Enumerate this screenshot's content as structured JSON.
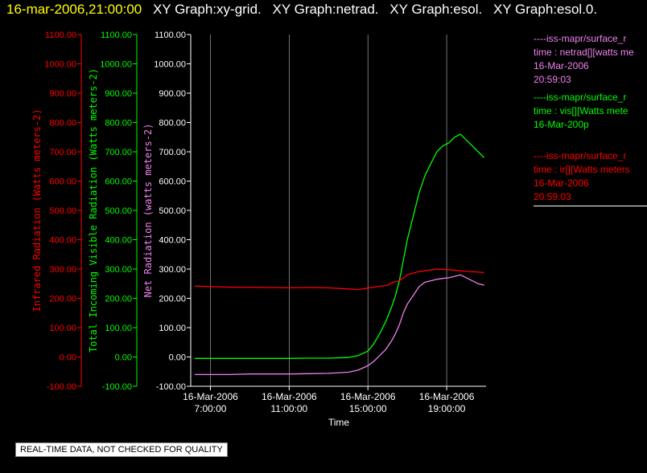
{
  "title": {
    "date": "16-mar-2006,21:00:00",
    "graphs": [
      "XY Graph:xy-grid.",
      "XY Graph:netrad.",
      "XY Graph:esol.",
      "XY Graph:esol.0."
    ]
  },
  "legend": [
    {
      "line": "----iss-mapr/surface_r",
      "desc": "time : netrad[][watts me",
      "date": "16-Mar-2006",
      "time": "20:59:03",
      "color": "#ee82ee"
    },
    {
      "line": "----iss-mapr/surface_r",
      "desc": "time : vis[][Watts mete",
      "date": "16-Mar-200p",
      "time": "",
      "color": "#00ff00"
    },
    {
      "line": "----iss-mapr/surface_r",
      "desc": "time : ir[][Watts meters",
      "date": "16-Mar-2006",
      "time": "20:59:03",
      "color": "#ff0000"
    }
  ],
  "quality_note": "REAL-TIME DATA, NOT CHECKED FOR QUALITY",
  "colors": {
    "ir": "#ff0000",
    "vis": "#00ff00",
    "net": "#ee82ee",
    "axis": "#ffffff",
    "grid": "#ffffff"
  },
  "chart_data": {
    "type": "line",
    "xlabel": "Time",
    "x_range_hours": [
      6.0,
      21.0
    ],
    "x_ticks": [
      {
        "h": 7,
        "date": "16-Mar-2006",
        "time": "7:00:00"
      },
      {
        "h": 11,
        "date": "16-Mar-2006",
        "time": "11:00:00"
      },
      {
        "h": 15,
        "date": "16-Mar-2006",
        "time": "15:00:00"
      },
      {
        "h": 19,
        "date": "16-Mar-2006",
        "time": "19:00:00"
      }
    ],
    "y_ticks": [
      -100,
      0,
      100,
      200,
      300,
      400,
      500,
      600,
      700,
      800,
      900,
      1000,
      1100
    ],
    "y_tick_labels": [
      "-100.00",
      "0.00",
      "100.00",
      "200.00",
      "300.00",
      "400.00",
      "500.00",
      "600.00",
      "700.00",
      "800.00",
      "900.00",
      "1000.00",
      "1100.00"
    ],
    "ylim": [
      -100,
      1100
    ],
    "y_axes": [
      {
        "label": "Infrared Radiation (Watts meters-2)",
        "color": "#ff0000"
      },
      {
        "label": "Total Incoming Visible Radiation (Watts meters-2)",
        "color": "#00ff00"
      },
      {
        "label": "Net Radiation (watts meters-2)",
        "color": "#ee82ee"
      }
    ],
    "grid": true,
    "series": [
      {
        "key": "ir",
        "color": "#ff0000",
        "points": [
          [
            6.2,
            242
          ],
          [
            7,
            240
          ],
          [
            8,
            238
          ],
          [
            9,
            238
          ],
          [
            10,
            237
          ],
          [
            11,
            236
          ],
          [
            12,
            237
          ],
          [
            13,
            236
          ],
          [
            14,
            232
          ],
          [
            14.5,
            230
          ],
          [
            15,
            235
          ],
          [
            15.5,
            240
          ],
          [
            16,
            245
          ],
          [
            16.3,
            255
          ],
          [
            16.6,
            260
          ],
          [
            17,
            280
          ],
          [
            17.5,
            290
          ],
          [
            18,
            295
          ],
          [
            18.5,
            300
          ],
          [
            19,
            298
          ],
          [
            19.5,
            295
          ],
          [
            20,
            292
          ],
          [
            20.5,
            290
          ],
          [
            20.9,
            288
          ]
        ]
      },
      {
        "key": "vis",
        "color": "#00ff00",
        "points": [
          [
            6.2,
            -5
          ],
          [
            7,
            -5
          ],
          [
            8,
            -5
          ],
          [
            9,
            -5
          ],
          [
            10,
            -5
          ],
          [
            11,
            -5
          ],
          [
            12,
            -4
          ],
          [
            13,
            -4
          ],
          [
            14,
            -2
          ],
          [
            14.5,
            5
          ],
          [
            15,
            20
          ],
          [
            15.3,
            45
          ],
          [
            15.6,
            80
          ],
          [
            15.9,
            120
          ],
          [
            16.2,
            170
          ],
          [
            16.4,
            210
          ],
          [
            16.6,
            260
          ],
          [
            16.8,
            330
          ],
          [
            17,
            400
          ],
          [
            17.3,
            480
          ],
          [
            17.6,
            560
          ],
          [
            17.9,
            620
          ],
          [
            18.2,
            660
          ],
          [
            18.5,
            700
          ],
          [
            18.8,
            720
          ],
          [
            19.1,
            730
          ],
          [
            19.4,
            750
          ],
          [
            19.7,
            760
          ],
          [
            20,
            740
          ],
          [
            20.3,
            720
          ],
          [
            20.6,
            700
          ],
          [
            20.9,
            680
          ]
        ]
      },
      {
        "key": "net",
        "color": "#ee82ee",
        "points": [
          [
            6.2,
            -60
          ],
          [
            7,
            -60
          ],
          [
            8,
            -60
          ],
          [
            9,
            -58
          ],
          [
            10,
            -58
          ],
          [
            11,
            -58
          ],
          [
            12,
            -57
          ],
          [
            13,
            -56
          ],
          [
            14,
            -52
          ],
          [
            14.5,
            -45
          ],
          [
            15,
            -30
          ],
          [
            15.3,
            -15
          ],
          [
            15.6,
            5
          ],
          [
            15.9,
            25
          ],
          [
            16.2,
            55
          ],
          [
            16.4,
            80
          ],
          [
            16.6,
            110
          ],
          [
            16.8,
            150
          ],
          [
            17,
            180
          ],
          [
            17.3,
            210
          ],
          [
            17.6,
            240
          ],
          [
            17.9,
            255
          ],
          [
            18.2,
            260
          ],
          [
            18.5,
            265
          ],
          [
            18.8,
            268
          ],
          [
            19.1,
            270
          ],
          [
            19.4,
            275
          ],
          [
            19.7,
            280
          ],
          [
            20,
            270
          ],
          [
            20.3,
            260
          ],
          [
            20.6,
            250
          ],
          [
            20.9,
            245
          ]
        ]
      }
    ]
  }
}
